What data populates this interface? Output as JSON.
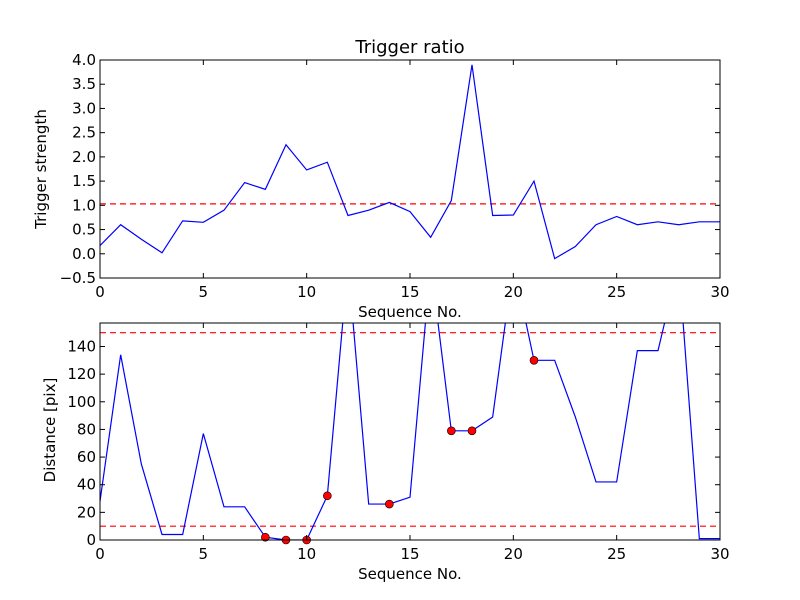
{
  "chart_data": [
    {
      "type": "line",
      "title": "Trigger ratio",
      "xlabel": "Sequence No.",
      "ylabel": "Trigger strength",
      "xlim": [
        0,
        30
      ],
      "ylim": [
        -0.5,
        4.0
      ],
      "grid": false,
      "x_ticks": [
        "0",
        "5",
        "10",
        "15",
        "20",
        "25",
        "30"
      ],
      "y_ticks": [
        "−0.5",
        "0.0",
        "0.5",
        "1.0",
        "1.5",
        "2.0",
        "2.5",
        "3.0",
        "3.5",
        "4.0"
      ],
      "series": [
        {
          "color": "#0000ff",
          "x": [
            0,
            1,
            2,
            3,
            4,
            5,
            6,
            7,
            8,
            9,
            10,
            11,
            12,
            13,
            14,
            15,
            16,
            17,
            18,
            19,
            20,
            21,
            22,
            23,
            24,
            25,
            26,
            27,
            28,
            29,
            30
          ],
          "y": [
            0.17,
            0.6,
            0.3,
            0.02,
            0.68,
            0.65,
            0.9,
            1.47,
            1.33,
            2.25,
            1.73,
            1.89,
            0.79,
            0.9,
            1.06,
            0.87,
            0.34,
            1.1,
            3.9,
            0.79,
            0.8,
            1.5,
            -0.1,
            0.15,
            0.6,
            0.77,
            0.6,
            0.66,
            0.6,
            0.66,
            0.66
          ]
        }
      ],
      "thresholds": [
        {
          "y": 1.03,
          "color": "#ff0000",
          "style": "dashed"
        }
      ]
    },
    {
      "type": "line",
      "xlabel": "Sequence No.",
      "ylabel": "Distance [pix]",
      "xlim": [
        0,
        30
      ],
      "ylim": [
        0,
        157
      ],
      "grid": false,
      "x_ticks": [
        "0",
        "5",
        "10",
        "15",
        "20",
        "25",
        "30"
      ],
      "y_ticks": [
        "0",
        "20",
        "40",
        "60",
        "80",
        "100",
        "120",
        "140"
      ],
      "series": [
        {
          "color": "#0000ff",
          "x": [
            0,
            1,
            2,
            3,
            4,
            5,
            6,
            7,
            8,
            9,
            10,
            11,
            12,
            13,
            14,
            15,
            16,
            17,
            18,
            19,
            20,
            21,
            22,
            23,
            24,
            25,
            26,
            27,
            28,
            29,
            30
          ],
          "y": [
            28,
            134,
            55,
            4,
            4,
            77,
            24,
            24,
            2,
            0,
            0,
            32,
            200,
            26,
            26,
            31,
            200,
            79,
            79,
            89,
            200,
            130,
            130,
            89,
            42,
            42,
            137,
            137,
            200,
            1,
            1
          ]
        }
      ],
      "markers": {
        "color": "#ff0000",
        "x": [
          8,
          9,
          10,
          11,
          14,
          17,
          18,
          21
        ],
        "y": [
          2,
          0,
          0,
          32,
          26,
          79,
          79,
          130
        ]
      },
      "thresholds": [
        {
          "y": 150,
          "color": "#ff0000",
          "style": "dashed"
        },
        {
          "y": 10,
          "color": "#ff0000",
          "style": "dashed"
        }
      ]
    }
  ]
}
